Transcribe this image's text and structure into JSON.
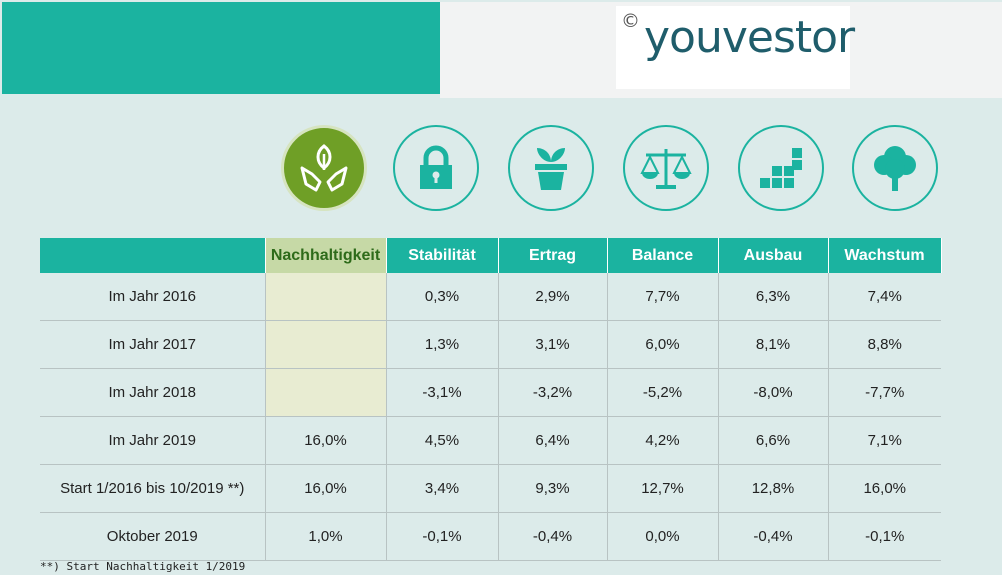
{
  "logo": {
    "copyright": "©",
    "text": "youvestor"
  },
  "icons": [
    {
      "name": "Nachhaltigkeit",
      "icon": "hands-leaf-icon"
    },
    {
      "name": "Stabilität",
      "icon": "lock-icon"
    },
    {
      "name": "Ertrag",
      "icon": "plant-pot-icon"
    },
    {
      "name": "Balance",
      "icon": "scales-icon"
    },
    {
      "name": "Ausbau",
      "icon": "blocks-icon"
    },
    {
      "name": "Wachstum",
      "icon": "tree-icon"
    }
  ],
  "table": {
    "headers": [
      "Nachhaltigkeit",
      "Stabilität",
      "Ertrag",
      "Balance",
      "Ausbau",
      "Wachstum"
    ],
    "rows": [
      {
        "label": "Im Jahr 2016",
        "values": [
          "",
          "0,3%",
          "2,9%",
          "7,7%",
          "6,3%",
          "7,4%"
        ]
      },
      {
        "label": "Im Jahr 2017",
        "values": [
          "",
          "1,3%",
          "3,1%",
          "6,0%",
          "8,1%",
          "8,8%"
        ]
      },
      {
        "label": "Im Jahr 2018",
        "values": [
          "",
          "-3,1%",
          "-3,2%",
          "-5,2%",
          "-8,0%",
          "-7,7%"
        ]
      },
      {
        "label": "Im Jahr 2019",
        "values": [
          "16,0%",
          "4,5%",
          "6,4%",
          "4,2%",
          "6,6%",
          "7,1%"
        ]
      },
      {
        "label": "Start 1/2016 bis 10/2019 **)",
        "values": [
          "16,0%",
          "3,4%",
          "9,3%",
          "12,7%",
          "12,8%",
          "16,0%"
        ]
      },
      {
        "label": "Oktober 2019",
        "values": [
          "1,0%",
          "-0,1%",
          "-0,4%",
          "0,0%",
          "-0,4%",
          "-0,1%"
        ]
      }
    ]
  },
  "footnote": "**) Start Nachhaltigkeit 1/2019",
  "colors": {
    "teal": "#1bb3a0",
    "green": "#6f9f26",
    "background": "#dcebea",
    "logo": "#1f5d6b"
  }
}
